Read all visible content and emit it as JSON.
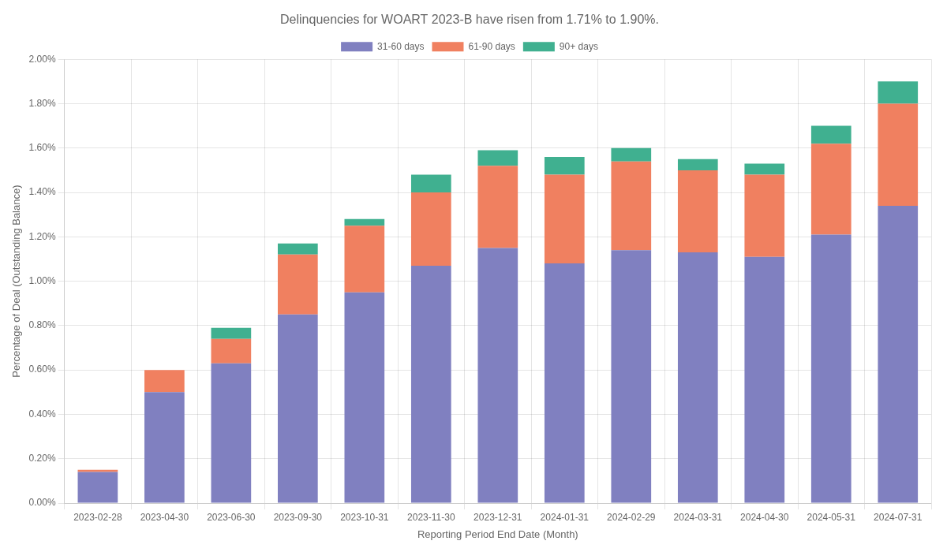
{
  "chart_data": {
    "type": "bar",
    "title": "Delinquencies for WOART 2023-B have risen from 1.71% to 1.90%.",
    "x_label": "Reporting Period End Date (Month)",
    "y_label": "Percentage of Deal (Outstanding Balance)",
    "categories": [
      "2023-02-28",
      "2023-04-30",
      "2023-06-30",
      "2023-09-30",
      "2023-10-31",
      "2023-11-30",
      "2023-12-31",
      "2024-01-31",
      "2024-02-29",
      "2024-03-31",
      "2024-04-30",
      "2024-05-31",
      "2024-07-31"
    ],
    "series": [
      {
        "name": "31-60 days",
        "color": "#8080c0",
        "values": [
          0.0014,
          0.005,
          0.0063,
          0.0085,
          0.0095,
          0.0107,
          0.0115,
          0.0108,
          0.0114,
          0.0113,
          0.0111,
          0.0121,
          0.0134
        ]
      },
      {
        "name": "61-90 days",
        "color": "#f08060",
        "values": [
          0.0001,
          0.001,
          0.0011,
          0.0027,
          0.003,
          0.0033,
          0.0037,
          0.004,
          0.004,
          0.0037,
          0.0037,
          0.0041,
          0.0046
        ]
      },
      {
        "name": "90+ days",
        "color": "#40b090",
        "values": [
          0.0,
          0.0,
          0.0005,
          0.0005,
          0.0003,
          0.0008,
          0.0007,
          0.0008,
          0.0006,
          0.0005,
          0.0005,
          0.0008,
          0.001
        ]
      }
    ],
    "stacked": true,
    "ylim": [
      0.0,
      0.02
    ],
    "yticks": [
      {
        "value": 0,
        "label": "0.00%"
      },
      {
        "value": 0.002,
        "label": "0.20%"
      },
      {
        "value": 0.004,
        "label": "0.40%"
      },
      {
        "value": 0.006,
        "label": "0.60%"
      },
      {
        "value": 0.008,
        "label": "0.80%"
      },
      {
        "value": 0.01,
        "label": "1.00%"
      },
      {
        "value": 0.012,
        "label": "1.20%"
      },
      {
        "value": 0.014,
        "label": "1.40%"
      },
      {
        "value": 0.016,
        "label": "1.60%"
      },
      {
        "value": 0.018,
        "label": "1.80%"
      },
      {
        "value": 0.02,
        "label": "2.00%"
      }
    ],
    "grid": true,
    "legend": "top"
  }
}
